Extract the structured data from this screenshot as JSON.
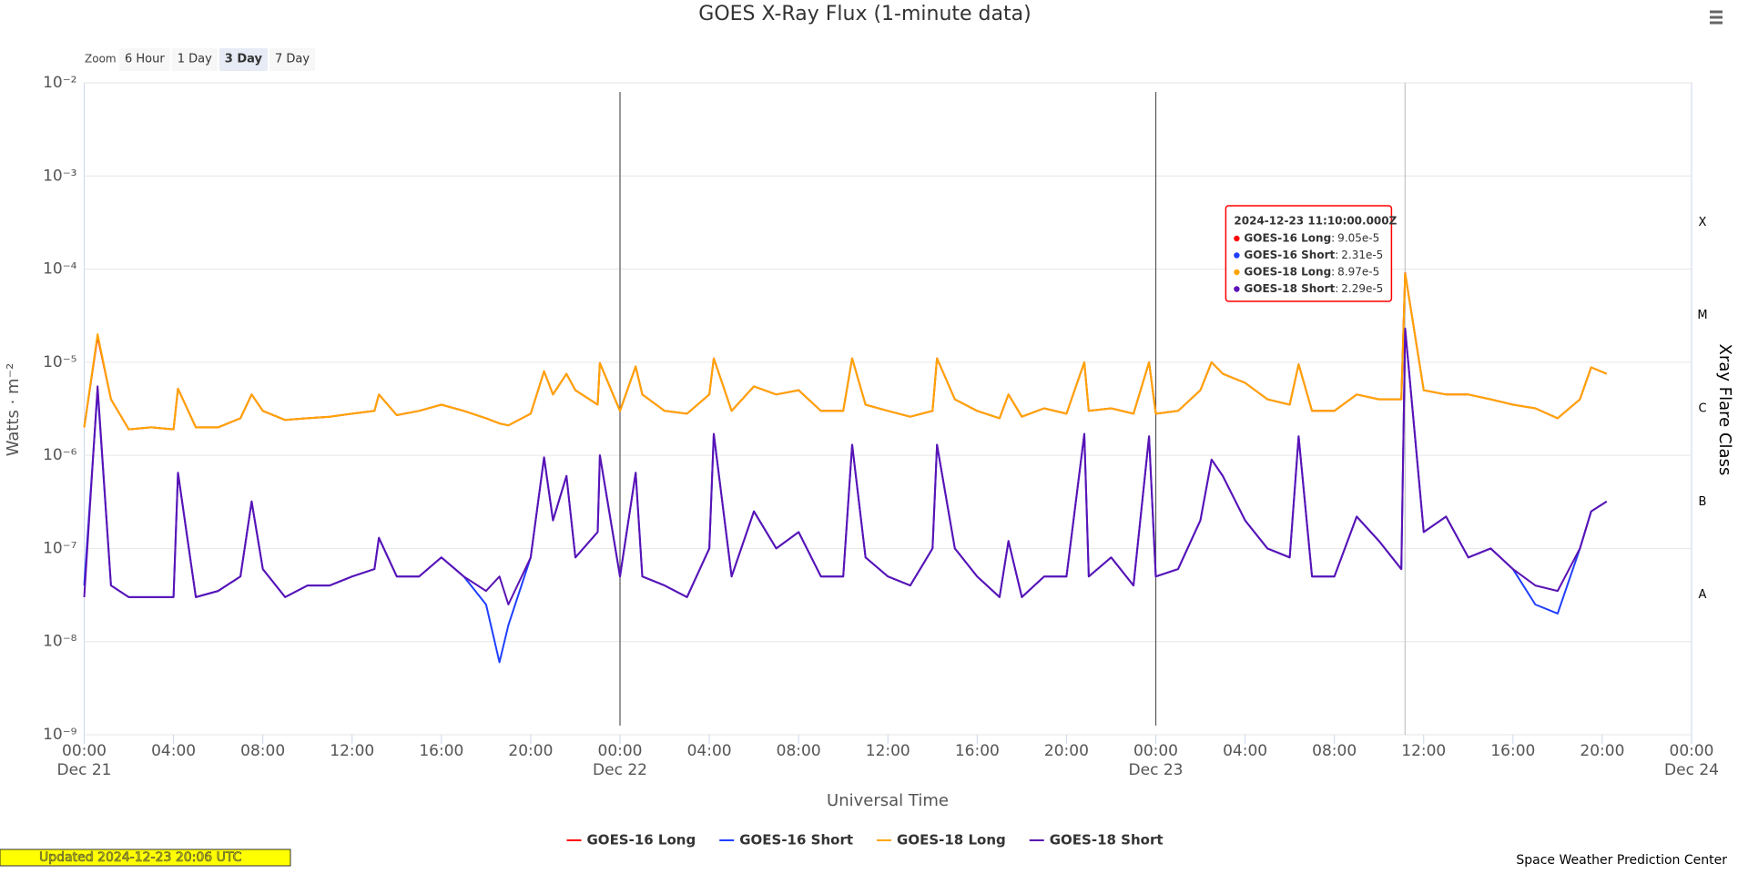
{
  "chart_data": {
    "type": "line",
    "title": "GOES X-Ray Flux (1-minute data)",
    "x_label": "Universal Time",
    "y_label": "Watts · m⁻²",
    "y2_label": "Xray Flare Class",
    "log_y": true,
    "grid": true,
    "legend": "bottom",
    "xlim": [
      0,
      72
    ],
    "xticks": [
      {
        "value": 0,
        "label": "00:00"
      },
      {
        "value": 4,
        "label": "04:00"
      },
      {
        "value": 8,
        "label": "08:00"
      },
      {
        "value": 12,
        "label": "12:00"
      },
      {
        "value": 16,
        "label": "16:00"
      },
      {
        "value": 20,
        "label": "20:00"
      },
      {
        "value": 24,
        "label": "00:00"
      },
      {
        "value": 28,
        "label": "04:00"
      },
      {
        "value": 32,
        "label": "08:00"
      },
      {
        "value": 36,
        "label": "12:00"
      },
      {
        "value": 40,
        "label": "16:00"
      },
      {
        "value": 44,
        "label": "20:00"
      },
      {
        "value": 48,
        "label": "00:00"
      },
      {
        "value": 52,
        "label": "04:00"
      },
      {
        "value": 56,
        "label": "08:00"
      },
      {
        "value": 60,
        "label": "12:00"
      },
      {
        "value": 64,
        "label": "16:00"
      },
      {
        "value": 68,
        "label": "20:00"
      },
      {
        "value": 72,
        "label": "00:00"
      }
    ],
    "xtick_dates": [
      {
        "value": 0,
        "label": "Dec 21"
      },
      {
        "value": 24,
        "label": "Dec 22"
      },
      {
        "value": 48,
        "label": "Dec 23"
      },
      {
        "value": 72,
        "label": "Dec 24"
      }
    ],
    "ylim": [
      1e-09,
      0.01
    ],
    "yticks": [
      {
        "value": 1e-09,
        "label": "10⁻⁹"
      },
      {
        "value": 1e-08,
        "label": "10⁻⁸"
      },
      {
        "value": 1e-07,
        "label": "10⁻⁷"
      },
      {
        "value": 1e-06,
        "label": "10⁻⁶"
      },
      {
        "value": 1e-05,
        "label": "10⁻⁵"
      },
      {
        "value": 0.0001,
        "label": "10⁻⁴"
      },
      {
        "value": 0.001,
        "label": "10⁻³"
      },
      {
        "value": 0.01,
        "label": "10⁻²"
      }
    ],
    "y2lim": [
      1e-09,
      0.01
    ],
    "y2ticks": [
      {
        "value": 3.16e-08,
        "label": "A"
      },
      {
        "value": 3.16e-07,
        "label": "B"
      },
      {
        "value": 3.16e-06,
        "label": "C"
      },
      {
        "value": 3.16e-05,
        "label": "M"
      },
      {
        "value": 0.000316,
        "label": "X"
      }
    ],
    "x": [
      0,
      0.6,
      1.2,
      2,
      3,
      4,
      4.2,
      5,
      6,
      7,
      7.5,
      8,
      9,
      10,
      11,
      12,
      13,
      13.2,
      14,
      15,
      16,
      17,
      18,
      18.6,
      19,
      20,
      20.6,
      21,
      21.6,
      22,
      23,
      23.1,
      24,
      24.7,
      25,
      26,
      27,
      28,
      28.2,
      29,
      30,
      31,
      32,
      33,
      34,
      34.4,
      35,
      36,
      37,
      38,
      38.2,
      39,
      40,
      41,
      41.4,
      42,
      43,
      44,
      44.8,
      45,
      46,
      47,
      47.7,
      48,
      49,
      50,
      50.5,
      51,
      52,
      53,
      54,
      54.4,
      55,
      56,
      57,
      58,
      59,
      59.17,
      60,
      61,
      62,
      63,
      64,
      65,
      66,
      67,
      67.5,
      68.2
    ],
    "series": [
      {
        "name": "GOES-16 Long",
        "color": "#ff0000",
        "values": [
          2e-06,
          1.9e-05,
          4e-06,
          1.9e-06,
          2e-06,
          1.9e-06,
          5.2e-06,
          2e-06,
          2e-06,
          2.5e-06,
          4.5e-06,
          3e-06,
          2.4e-06,
          2.5e-06,
          2.6e-06,
          2.8e-06,
          3e-06,
          4.5e-06,
          2.7e-06,
          3e-06,
          3.5e-06,
          3e-06,
          2.5e-06,
          2.2e-06,
          2.1e-06,
          2.8e-06,
          8e-06,
          4.5e-06,
          7.5e-06,
          5e-06,
          3.5e-06,
          9.8e-06,
          3e-06,
          9e-06,
          4.5e-06,
          3e-06,
          2.8e-06,
          4.5e-06,
          1.1e-05,
          3e-06,
          5.5e-06,
          4.5e-06,
          5e-06,
          3e-06,
          3e-06,
          1.1e-05,
          3.5e-06,
          3e-06,
          2.6e-06,
          3e-06,
          1.1e-05,
          4e-06,
          3e-06,
          2.5e-06,
          4.5e-06,
          2.6e-06,
          3.2e-06,
          2.8e-06,
          1e-05,
          3e-06,
          3.2e-06,
          2.8e-06,
          1e-05,
          2.8e-06,
          3e-06,
          5e-06,
          1e-05,
          7.5e-06,
          6e-06,
          4e-06,
          3.5e-06,
          9.5e-06,
          3e-06,
          3e-06,
          4.5e-06,
          4e-06,
          4e-06,
          9.05e-05,
          5e-06,
          4.5e-06,
          4.5e-06,
          4e-06,
          3.5e-06,
          3.2e-06,
          2.5e-06,
          4e-06,
          8.8e-06,
          7.5e-06
        ]
      },
      {
        "name": "GOES-16 Short",
        "color": "#1f3fff",
        "values": [
          4e-08,
          5e-06,
          4e-08,
          3e-08,
          3e-08,
          3e-08,
          6.5e-07,
          3e-08,
          3.5e-08,
          5e-08,
          3.2e-07,
          6e-08,
          3e-08,
          4e-08,
          4e-08,
          5e-08,
          6e-08,
          1.3e-07,
          5e-08,
          5e-08,
          8e-08,
          5e-08,
          2.5e-08,
          6e-09,
          1.5e-08,
          8e-08,
          9.5e-07,
          2e-07,
          6e-07,
          8e-08,
          1.5e-07,
          1e-06,
          5e-08,
          6.5e-07,
          5e-08,
          4e-08,
          3e-08,
          1e-07,
          1.7e-06,
          5e-08,
          2.5e-07,
          1e-07,
          1.5e-07,
          5e-08,
          5e-08,
          1.3e-06,
          8e-08,
          5e-08,
          4e-08,
          1e-07,
          1.3e-06,
          1e-07,
          5e-08,
          3e-08,
          1.2e-07,
          3e-08,
          5e-08,
          5e-08,
          1.7e-06,
          5e-08,
          8e-08,
          4e-08,
          1.6e-06,
          5e-08,
          6e-08,
          2e-07,
          9e-07,
          6e-07,
          2e-07,
          1e-07,
          8e-08,
          1.6e-06,
          5e-08,
          5e-08,
          2.2e-07,
          1.2e-07,
          6e-08,
          2.31e-05,
          1.5e-07,
          2.2e-07,
          8e-08,
          1e-07,
          6e-08,
          2.5e-08,
          2e-08,
          1e-07,
          2.5e-07,
          3.2e-07
        ]
      },
      {
        "name": "GOES-18 Long",
        "color": "#ffa500",
        "values": [
          2e-06,
          2e-05,
          4e-06,
          1.9e-06,
          2e-06,
          1.9e-06,
          5.2e-06,
          2e-06,
          2e-06,
          2.5e-06,
          4.5e-06,
          3e-06,
          2.4e-06,
          2.5e-06,
          2.6e-06,
          2.8e-06,
          3e-06,
          4.5e-06,
          2.7e-06,
          3e-06,
          3.5e-06,
          3e-06,
          2.5e-06,
          2.2e-06,
          2.1e-06,
          2.8e-06,
          8e-06,
          4.5e-06,
          7.5e-06,
          5e-06,
          3.5e-06,
          9.8e-06,
          3e-06,
          9e-06,
          4.5e-06,
          3e-06,
          2.8e-06,
          4.5e-06,
          1.1e-05,
          3e-06,
          5.5e-06,
          4.5e-06,
          5e-06,
          3e-06,
          3e-06,
          1.1e-05,
          3.5e-06,
          3e-06,
          2.6e-06,
          3e-06,
          1.1e-05,
          4e-06,
          3e-06,
          2.5e-06,
          4.5e-06,
          2.6e-06,
          3.2e-06,
          2.8e-06,
          1e-05,
          3e-06,
          3.2e-06,
          2.8e-06,
          1e-05,
          2.8e-06,
          3e-06,
          5e-06,
          1e-05,
          7.5e-06,
          6e-06,
          4e-06,
          3.5e-06,
          9.5e-06,
          3e-06,
          3e-06,
          4.5e-06,
          4e-06,
          4e-06,
          8.97e-05,
          5e-06,
          4.5e-06,
          4.5e-06,
          4e-06,
          3.5e-06,
          3.2e-06,
          2.5e-06,
          4e-06,
          8.8e-06,
          7.5e-06
        ]
      },
      {
        "name": "GOES-18 Short",
        "color": "#5a12b4",
        "values": [
          3e-08,
          5.5e-06,
          4e-08,
          3e-08,
          3e-08,
          3e-08,
          6.5e-07,
          3e-08,
          3.5e-08,
          5e-08,
          3.2e-07,
          6e-08,
          3e-08,
          4e-08,
          4e-08,
          5e-08,
          6e-08,
          1.3e-07,
          5e-08,
          5e-08,
          8e-08,
          5e-08,
          3.5e-08,
          5e-08,
          2.5e-08,
          8e-08,
          9.5e-07,
          2e-07,
          6e-07,
          8e-08,
          1.5e-07,
          1e-06,
          5e-08,
          6.5e-07,
          5e-08,
          4e-08,
          3e-08,
          1e-07,
          1.7e-06,
          5e-08,
          2.5e-07,
          1e-07,
          1.5e-07,
          5e-08,
          5e-08,
          1.3e-06,
          8e-08,
          5e-08,
          4e-08,
          1e-07,
          1.3e-06,
          1e-07,
          5e-08,
          3e-08,
          1.2e-07,
          3e-08,
          5e-08,
          5e-08,
          1.7e-06,
          5e-08,
          8e-08,
          4e-08,
          1.6e-06,
          5e-08,
          6e-08,
          2e-07,
          9e-07,
          6e-07,
          2e-07,
          1e-07,
          8e-08,
          1.6e-06,
          5e-08,
          5e-08,
          2.2e-07,
          1.2e-07,
          6e-08,
          2.29e-05,
          1.5e-07,
          2.2e-07,
          8e-08,
          1e-07,
          6e-08,
          4e-08,
          3.5e-08,
          1e-07,
          2.5e-07,
          3.2e-07
        ]
      }
    ],
    "tooltip": {
      "x": 59.17,
      "title": "2024-12-23 11:10:00.000Z",
      "values": [
        "9.05e-5",
        "2.31e-5",
        "8.97e-5",
        "2.29e-5"
      ]
    }
  },
  "zoom": {
    "label": "Zoom",
    "buttons": [
      "6 Hour",
      "1 Day",
      "3 Day",
      "7 Day"
    ],
    "selected": 2
  },
  "footer": {
    "updated": "Updated 2024-12-23 20:06 UTC",
    "credit": "Space Weather Prediction Center"
  }
}
